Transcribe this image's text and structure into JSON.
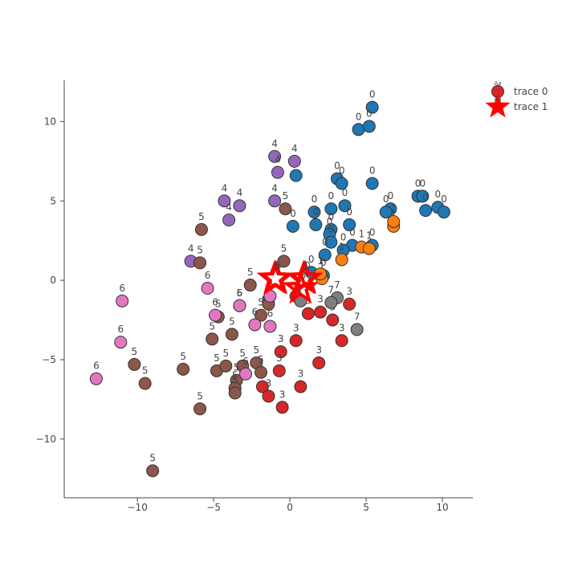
{
  "chart_data": {
    "type": "scatter",
    "xlim": [
      -14.8,
      12.0
    ],
    "ylim": [
      -13.7,
      12.6
    ],
    "xticks": [
      -10,
      -5,
      0,
      5,
      10
    ],
    "yticks": [
      -10,
      -5,
      0,
      5,
      10
    ],
    "grid": false,
    "legend_position": "top-right",
    "cluster_colors": {
      "0": "#1f77b4",
      "1": "#ff7f0e",
      "3": "#d62728",
      "4": "#9467bd",
      "5": "#8c564b",
      "6": "#e377c2",
      "7": "#7f7f7f"
    },
    "series": [
      {
        "name": "trace 0",
        "marker": "circle",
        "legend_color": "#d62728",
        "points": [
          {
            "x": 5.4,
            "y": 10.9,
            "label": "0"
          },
          {
            "x": 4.5,
            "y": 9.5,
            "label": "0"
          },
          {
            "x": 5.2,
            "y": 9.7,
            "label": "0"
          },
          {
            "x": 0.4,
            "y": 6.6,
            "label": "0"
          },
          {
            "x": 3.1,
            "y": 6.4,
            "label": "0"
          },
          {
            "x": 3.4,
            "y": 6.1,
            "label": "0"
          },
          {
            "x": 5.4,
            "y": 6.1,
            "label": "0"
          },
          {
            "x": 8.4,
            "y": 5.3,
            "label": "0"
          },
          {
            "x": 8.7,
            "y": 5.3,
            "label": "0"
          },
          {
            "x": 9.7,
            "y": 4.6,
            "label": "0"
          },
          {
            "x": 10.1,
            "y": 4.3,
            "label": "0"
          },
          {
            "x": 8.9,
            "y": 4.4,
            "label": "0"
          },
          {
            "x": 6.6,
            "y": 4.5,
            "label": "0"
          },
          {
            "x": 6.3,
            "y": 4.3,
            "label": "0"
          },
          {
            "x": 1.6,
            "y": 4.3,
            "label": "0"
          },
          {
            "x": 2.7,
            "y": 4.5,
            "label": "0"
          },
          {
            "x": 3.6,
            "y": 4.7,
            "label": "0"
          },
          {
            "x": 1.7,
            "y": 3.5,
            "label": "0"
          },
          {
            "x": 3.9,
            "y": 3.5,
            "label": "0"
          },
          {
            "x": 0.2,
            "y": 3.4,
            "label": "0"
          },
          {
            "x": 2.7,
            "y": 3.2,
            "label": "0"
          },
          {
            "x": 2.6,
            "y": 2.9,
            "label": "0"
          },
          {
            "x": 2.7,
            "y": 2.4,
            "label": "0"
          },
          {
            "x": 4.1,
            "y": 2.2,
            "label": "0"
          },
          {
            "x": 5.4,
            "y": 2.2,
            "label": "0"
          },
          {
            "x": 2.3,
            "y": 1.6,
            "label": "0"
          },
          {
            "x": 3.5,
            "y": 1.9,
            "label": "0"
          },
          {
            "x": 1.4,
            "y": 0.5,
            "label": "0"
          },
          {
            "x": 2.2,
            "y": 0.3,
            "label": "0"
          },
          {
            "x": 6.8,
            "y": 3.4,
            "label": "1"
          },
          {
            "x": 6.8,
            "y": 3.7,
            "label": "1"
          },
          {
            "x": 4.7,
            "y": 2.1,
            "label": "1"
          },
          {
            "x": 5.2,
            "y": 2.0,
            "label": "1"
          },
          {
            "x": 3.4,
            "y": 1.3,
            "label": "1"
          },
          {
            "x": 2.1,
            "y": 0.1,
            "label": "1"
          },
          {
            "x": 2.0,
            "y": 0.4,
            "label": "1"
          },
          {
            "x": 0.4,
            "y": -1.0,
            "label": "3"
          },
          {
            "x": 1.2,
            "y": -2.1,
            "label": "3"
          },
          {
            "x": 2.0,
            "y": -2.0,
            "label": "3"
          },
          {
            "x": 3.9,
            "y": -1.5,
            "label": "3"
          },
          {
            "x": 2.8,
            "y": -2.5,
            "label": "3"
          },
          {
            "x": 0.4,
            "y": -3.8,
            "label": "3"
          },
          {
            "x": 3.4,
            "y": -3.8,
            "label": "3"
          },
          {
            "x": -0.6,
            "y": -4.5,
            "label": "3"
          },
          {
            "x": 1.9,
            "y": -5.2,
            "label": "3"
          },
          {
            "x": -0.7,
            "y": -5.7,
            "label": "3"
          },
          {
            "x": 0.7,
            "y": -6.7,
            "label": "3"
          },
          {
            "x": -1.8,
            "y": -6.7,
            "label": "3"
          },
          {
            "x": -1.4,
            "y": -7.3,
            "label": "3"
          },
          {
            "x": -0.5,
            "y": -8.0,
            "label": "3"
          },
          {
            "x": -1.0,
            "y": 7.8,
            "label": "4"
          },
          {
            "x": 0.3,
            "y": 7.5,
            "label": "4"
          },
          {
            "x": -0.8,
            "y": 6.8,
            "label": "4"
          },
          {
            "x": -4.3,
            "y": 5.0,
            "label": "4"
          },
          {
            "x": -3.3,
            "y": 4.7,
            "label": "4"
          },
          {
            "x": -1.0,
            "y": 5.0,
            "label": "4"
          },
          {
            "x": -4.0,
            "y": 3.8,
            "label": "4"
          },
          {
            "x": -6.5,
            "y": 1.2,
            "label": "4"
          },
          {
            "x": -0.3,
            "y": 4.5,
            "label": "5"
          },
          {
            "x": -5.8,
            "y": 3.2,
            "label": "5"
          },
          {
            "x": -5.9,
            "y": 1.1,
            "label": "5"
          },
          {
            "x": -0.4,
            "y": 1.2,
            "label": "5"
          },
          {
            "x": -2.6,
            "y": -0.3,
            "label": "5"
          },
          {
            "x": -1.4,
            "y": -1.2,
            "label": "5"
          },
          {
            "x": -1.4,
            "y": -1.5,
            "label": "5"
          },
          {
            "x": -3.3,
            "y": -1.6,
            "label": "5"
          },
          {
            "x": -1.9,
            "y": -2.2,
            "label": "5"
          },
          {
            "x": -4.7,
            "y": -2.3,
            "label": "5"
          },
          {
            "x": -3.8,
            "y": -3.4,
            "label": "5"
          },
          {
            "x": -5.1,
            "y": -3.7,
            "label": "5"
          },
          {
            "x": -10.2,
            "y": -5.3,
            "label": "5"
          },
          {
            "x": -9.5,
            "y": -6.5,
            "label": "5"
          },
          {
            "x": -7.0,
            "y": -5.6,
            "label": "5"
          },
          {
            "x": -4.8,
            "y": -5.7,
            "label": "5"
          },
          {
            "x": -4.2,
            "y": -5.4,
            "label": "5"
          },
          {
            "x": -3.1,
            "y": -5.4,
            "label": "5"
          },
          {
            "x": -2.2,
            "y": -5.2,
            "label": "5"
          },
          {
            "x": -1.9,
            "y": -5.8,
            "label": "5"
          },
          {
            "x": -3.5,
            "y": -6.3,
            "label": "5"
          },
          {
            "x": -3.6,
            "y": -6.8,
            "label": "5"
          },
          {
            "x": -3.6,
            "y": -7.1,
            "label": "5"
          },
          {
            "x": -5.9,
            "y": -8.1,
            "label": "5"
          },
          {
            "x": -9.0,
            "y": -12.0,
            "label": "5"
          },
          {
            "x": -11.0,
            "y": -1.3,
            "label": "6"
          },
          {
            "x": -5.4,
            "y": -0.5,
            "label": "6"
          },
          {
            "x": -4.9,
            "y": -2.2,
            "label": "6"
          },
          {
            "x": -3.3,
            "y": -1.6,
            "label": "6"
          },
          {
            "x": -2.3,
            "y": -2.8,
            "label": "6"
          },
          {
            "x": -1.3,
            "y": -2.9,
            "label": "6"
          },
          {
            "x": -11.1,
            "y": -3.9,
            "label": "6"
          },
          {
            "x": -12.7,
            "y": -6.2,
            "label": "6"
          },
          {
            "x": -2.9,
            "y": -5.9,
            "label": "6"
          },
          {
            "x": -1.3,
            "y": -1.0,
            "label": "6"
          },
          {
            "x": 0.7,
            "y": -1.3,
            "label": "7"
          },
          {
            "x": 3.1,
            "y": -1.1,
            "label": "7"
          },
          {
            "x": 2.7,
            "y": -1.4,
            "label": "7"
          },
          {
            "x": 4.4,
            "y": -3.1,
            "label": "7"
          }
        ]
      },
      {
        "name": "trace 1",
        "marker": "star",
        "color": "#ff0000",
        "points": [
          {
            "x": -0.9,
            "y": 0.1,
            "label": "5"
          },
          {
            "x": -1.0,
            "y": 0.1,
            "label": "6"
          },
          {
            "x": 0.7,
            "y": -0.5,
            "label": "3"
          },
          {
            "x": 1.0,
            "y": 0.1,
            "label": "0"
          },
          {
            "x": 0.9,
            "y": 0.1,
            "label": "1"
          }
        ]
      }
    ],
    "legend": [
      {
        "label": "trace 0",
        "marker": "circle",
        "color": "#d62728"
      },
      {
        "label": "trace 1",
        "marker": "star",
        "color": "#ff0000"
      }
    ],
    "legend_symbol_text": "Aa"
  }
}
